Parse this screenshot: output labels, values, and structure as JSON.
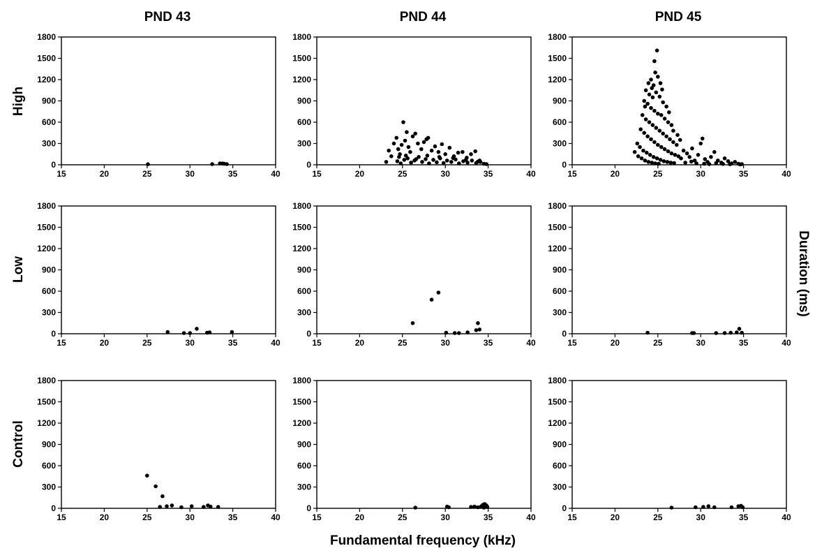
{
  "figure": {
    "column_titles": [
      "PND 43",
      "PND 44",
      "PND 45"
    ],
    "row_labels": [
      "High",
      "Low",
      "Control"
    ],
    "xlabel": "Fundamental frequency (kHz)",
    "ylabel": "Duration (ms)",
    "marker_color": "#000000"
  },
  "chart_data": [
    {
      "type": "scatter",
      "panel": "High / PND 43",
      "xlim": [
        15,
        40
      ],
      "ylim": [
        0,
        1800
      ],
      "xticks": [
        15,
        20,
        25,
        30,
        35,
        40
      ],
      "yticks": [
        0,
        300,
        600,
        900,
        1200,
        1500,
        1800
      ],
      "points": [
        [
          25.1,
          8
        ],
        [
          32.6,
          10
        ],
        [
          33.5,
          20
        ],
        [
          33.8,
          18
        ],
        [
          34.0,
          15
        ],
        [
          34.3,
          10
        ]
      ]
    },
    {
      "type": "scatter",
      "panel": "High / PND 44",
      "xlim": [
        15,
        40
      ],
      "ylim": [
        0,
        1800
      ],
      "xticks": [
        15,
        20,
        25,
        30,
        35,
        40
      ],
      "yticks": [
        0,
        300,
        600,
        900,
        1200,
        1500,
        1800
      ],
      "points": [
        [
          23.1,
          40
        ],
        [
          23.4,
          200
        ],
        [
          23.7,
          120
        ],
        [
          24.0,
          300
        ],
        [
          24.3,
          380
        ],
        [
          24.5,
          220
        ],
        [
          24.7,
          150
        ],
        [
          24.9,
          280
        ],
        [
          25.1,
          600
        ],
        [
          25.3,
          340
        ],
        [
          25.5,
          460
        ],
        [
          25.7,
          250
        ],
        [
          25.9,
          180
        ],
        [
          26.2,
          400
        ],
        [
          26.5,
          440
        ],
        [
          26.8,
          300
        ],
        [
          27.2,
          220
        ],
        [
          27.5,
          320
        ],
        [
          27.8,
          360
        ],
        [
          28.0,
          380
        ],
        [
          28.4,
          200
        ],
        [
          28.8,
          260
        ],
        [
          29.2,
          180
        ],
        [
          29.6,
          290
        ],
        [
          30.0,
          150
        ],
        [
          30.5,
          240
        ],
        [
          31.0,
          120
        ],
        [
          31.5,
          170
        ],
        [
          32.0,
          180
        ],
        [
          32.5,
          100
        ],
        [
          33.0,
          150
        ],
        [
          33.5,
          190
        ],
        [
          34.0,
          60
        ],
        [
          24.4,
          50
        ],
        [
          24.8,
          20
        ],
        [
          25.2,
          70
        ],
        [
          25.6,
          90
        ],
        [
          26.0,
          30
        ],
        [
          26.4,
          60
        ],
        [
          26.9,
          110
        ],
        [
          27.3,
          40
        ],
        [
          27.7,
          80
        ],
        [
          28.1,
          20
        ],
        [
          28.6,
          70
        ],
        [
          29.0,
          35
        ],
        [
          29.4,
          90
        ],
        [
          29.8,
          25
        ],
        [
          30.2,
          60
        ],
        [
          30.7,
          40
        ],
        [
          31.2,
          75
        ],
        [
          31.6,
          20
        ],
        [
          32.1,
          50
        ],
        [
          32.6,
          30
        ],
        [
          33.1,
          60
        ],
        [
          33.6,
          25
        ],
        [
          34.1,
          40
        ],
        [
          34.5,
          15
        ],
        [
          34.8,
          10
        ],
        [
          24.6,
          110
        ],
        [
          25.4,
          130
        ],
        [
          26.6,
          80
        ],
        [
          27.9,
          130
        ],
        [
          29.3,
          110
        ],
        [
          30.9,
          95
        ],
        [
          32.4,
          70
        ],
        [
          33.8,
          45
        ]
      ]
    },
    {
      "type": "scatter",
      "panel": "High / PND 45",
      "xlim": [
        15,
        40
      ],
      "ylim": [
        0,
        1800
      ],
      "xticks": [
        15,
        20,
        25,
        30,
        35,
        40
      ],
      "yticks": [
        0,
        300,
        600,
        900,
        1200,
        1500,
        1800
      ],
      "points": [
        [
          24.9,
          1610
        ],
        [
          24.6,
          1460
        ],
        [
          24.2,
          1200
        ],
        [
          23.9,
          1150
        ],
        [
          24.5,
          1120
        ],
        [
          25.0,
          1240
        ],
        [
          25.3,
          1150
        ],
        [
          23.6,
          1050
        ],
        [
          24.0,
          990
        ],
        [
          24.4,
          950
        ],
        [
          24.8,
          1020
        ],
        [
          25.2,
          960
        ],
        [
          25.6,
          880
        ],
        [
          26.0,
          820
        ],
        [
          23.4,
          900
        ],
        [
          23.8,
          860
        ],
        [
          24.2,
          800
        ],
        [
          24.6,
          760
        ],
        [
          25.0,
          720
        ],
        [
          25.4,
          700
        ],
        [
          25.8,
          650
        ],
        [
          26.2,
          600
        ],
        [
          26.6,
          560
        ],
        [
          23.2,
          700
        ],
        [
          23.6,
          640
        ],
        [
          24.0,
          600
        ],
        [
          24.4,
          560
        ],
        [
          24.8,
          520
        ],
        [
          25.2,
          480
        ],
        [
          25.6,
          440
        ],
        [
          26.0,
          400
        ],
        [
          26.4,
          360
        ],
        [
          26.8,
          320
        ],
        [
          27.2,
          280
        ],
        [
          23.0,
          500
        ],
        [
          23.4,
          450
        ],
        [
          23.8,
          400
        ],
        [
          24.2,
          360
        ],
        [
          24.6,
          320
        ],
        [
          25.0,
          280
        ],
        [
          25.4,
          250
        ],
        [
          25.8,
          220
        ],
        [
          26.2,
          190
        ],
        [
          26.6,
          160
        ],
        [
          27.0,
          140
        ],
        [
          27.4,
          120
        ],
        [
          22.6,
          300
        ],
        [
          22.9,
          250
        ],
        [
          23.3,
          200
        ],
        [
          23.7,
          170
        ],
        [
          24.1,
          140
        ],
        [
          24.5,
          110
        ],
        [
          24.9,
          90
        ],
        [
          25.3,
          70
        ],
        [
          25.7,
          50
        ],
        [
          26.1,
          40
        ],
        [
          26.5,
          30
        ],
        [
          26.9,
          25
        ],
        [
          22.3,
          180
        ],
        [
          22.7,
          120
        ],
        [
          23.1,
          90
        ],
        [
          23.5,
          60
        ],
        [
          23.9,
          40
        ],
        [
          24.3,
          30
        ],
        [
          24.7,
          20
        ],
        [
          25.1,
          15
        ],
        [
          27.7,
          90
        ],
        [
          28.0,
          200
        ],
        [
          28.4,
          160
        ],
        [
          28.7,
          110
        ],
        [
          29.0,
          230
        ],
        [
          29.3,
          60
        ],
        [
          29.7,
          140
        ],
        [
          30.0,
          300
        ],
        [
          30.2,
          370
        ],
        [
          30.5,
          80
        ],
        [
          30.8,
          40
        ],
        [
          31.2,
          110
        ],
        [
          31.6,
          180
        ],
        [
          32.0,
          60
        ],
        [
          32.4,
          30
        ],
        [
          32.8,
          90
        ],
        [
          33.2,
          50
        ],
        [
          33.6,
          20
        ],
        [
          34.0,
          40
        ],
        [
          34.4,
          15
        ],
        [
          34.8,
          10
        ],
        [
          28.2,
          30
        ],
        [
          28.9,
          45
        ],
        [
          29.5,
          20
        ],
        [
          30.4,
          15
        ],
        [
          31.0,
          10
        ],
        [
          31.8,
          25
        ],
        [
          32.6,
          12
        ],
        [
          33.4,
          8
        ],
        [
          34.6,
          5
        ],
        [
          24.7,
          1300
        ],
        [
          24.3,
          1080
        ],
        [
          25.5,
          1060
        ],
        [
          23.5,
          820
        ],
        [
          26.3,
          740
        ],
        [
          26.8,
          480
        ],
        [
          27.3,
          420
        ],
        [
          27.6,
          350
        ]
      ]
    },
    {
      "type": "scatter",
      "panel": "Low / PND 43",
      "xlim": [
        15,
        40
      ],
      "ylim": [
        0,
        1800
      ],
      "xticks": [
        15,
        20,
        25,
        30,
        35,
        40
      ],
      "yticks": [
        0,
        300,
        600,
        900,
        1200,
        1500,
        1800
      ],
      "points": [
        [
          27.4,
          25
        ],
        [
          29.3,
          10
        ],
        [
          30.0,
          10
        ],
        [
          30.8,
          70
        ],
        [
          32.0,
          15
        ],
        [
          32.3,
          20
        ],
        [
          34.9,
          25
        ]
      ]
    },
    {
      "type": "scatter",
      "panel": "Low / PND 44",
      "xlim": [
        15,
        40
      ],
      "ylim": [
        0,
        1800
      ],
      "xticks": [
        15,
        20,
        25,
        30,
        35,
        40
      ],
      "yticks": [
        0,
        300,
        600,
        900,
        1200,
        1500,
        1800
      ],
      "points": [
        [
          26.2,
          150
        ],
        [
          28.4,
          480
        ],
        [
          29.2,
          580
        ],
        [
          30.1,
          15
        ],
        [
          31.1,
          10
        ],
        [
          31.6,
          10
        ],
        [
          32.6,
          20
        ],
        [
          33.6,
          50
        ],
        [
          33.8,
          150
        ],
        [
          34.0,
          60
        ]
      ]
    },
    {
      "type": "scatter",
      "panel": "Low / PND 45",
      "xlim": [
        15,
        40
      ],
      "ylim": [
        0,
        1800
      ],
      "xticks": [
        15,
        20,
        25,
        30,
        35,
        40
      ],
      "yticks": [
        0,
        300,
        600,
        900,
        1200,
        1500,
        1800
      ],
      "points": [
        [
          23.8,
          15
        ],
        [
          29.0,
          10
        ],
        [
          29.2,
          10
        ],
        [
          31.8,
          10
        ],
        [
          32.8,
          10
        ],
        [
          33.5,
          15
        ],
        [
          34.2,
          20
        ],
        [
          34.5,
          70
        ],
        [
          34.8,
          15
        ]
      ]
    },
    {
      "type": "scatter",
      "panel": "Control / PND 43",
      "xlim": [
        15,
        40
      ],
      "ylim": [
        0,
        1800
      ],
      "xticks": [
        15,
        20,
        25,
        30,
        35,
        40
      ],
      "yticks": [
        0,
        300,
        600,
        900,
        1200,
        1500,
        1800
      ],
      "points": [
        [
          25.0,
          460
        ],
        [
          26.0,
          310
        ],
        [
          26.5,
          20
        ],
        [
          26.8,
          170
        ],
        [
          27.3,
          30
        ],
        [
          27.9,
          40
        ],
        [
          29.0,
          15
        ],
        [
          30.2,
          30
        ],
        [
          31.6,
          20
        ],
        [
          32.1,
          40
        ],
        [
          32.4,
          25
        ],
        [
          33.3,
          20
        ]
      ]
    },
    {
      "type": "scatter",
      "panel": "Control / PND 44",
      "xlim": [
        15,
        40
      ],
      "ylim": [
        0,
        1800
      ],
      "xticks": [
        15,
        20,
        25,
        30,
        35,
        40
      ],
      "yticks": [
        0,
        300,
        600,
        900,
        1200,
        1500,
        1800
      ],
      "points": [
        [
          26.5,
          10
        ],
        [
          30.2,
          25
        ],
        [
          30.4,
          15
        ],
        [
          33.0,
          20
        ],
        [
          33.4,
          25
        ],
        [
          33.8,
          15
        ],
        [
          34.2,
          30
        ],
        [
          34.4,
          50
        ],
        [
          34.6,
          60
        ],
        [
          34.8,
          40
        ],
        [
          34.9,
          20
        ],
        [
          34.5,
          10
        ]
      ]
    },
    {
      "type": "scatter",
      "panel": "Control / PND 45",
      "xlim": [
        15,
        40
      ],
      "ylim": [
        0,
        1800
      ],
      "xticks": [
        15,
        20,
        25,
        30,
        35,
        40
      ],
      "yticks": [
        0,
        300,
        600,
        900,
        1200,
        1500,
        1800
      ],
      "points": [
        [
          26.6,
          10
        ],
        [
          29.4,
          15
        ],
        [
          30.3,
          20
        ],
        [
          30.9,
          30
        ],
        [
          31.6,
          15
        ],
        [
          33.6,
          15
        ],
        [
          34.4,
          30
        ],
        [
          34.7,
          35
        ],
        [
          34.9,
          15
        ]
      ]
    }
  ]
}
